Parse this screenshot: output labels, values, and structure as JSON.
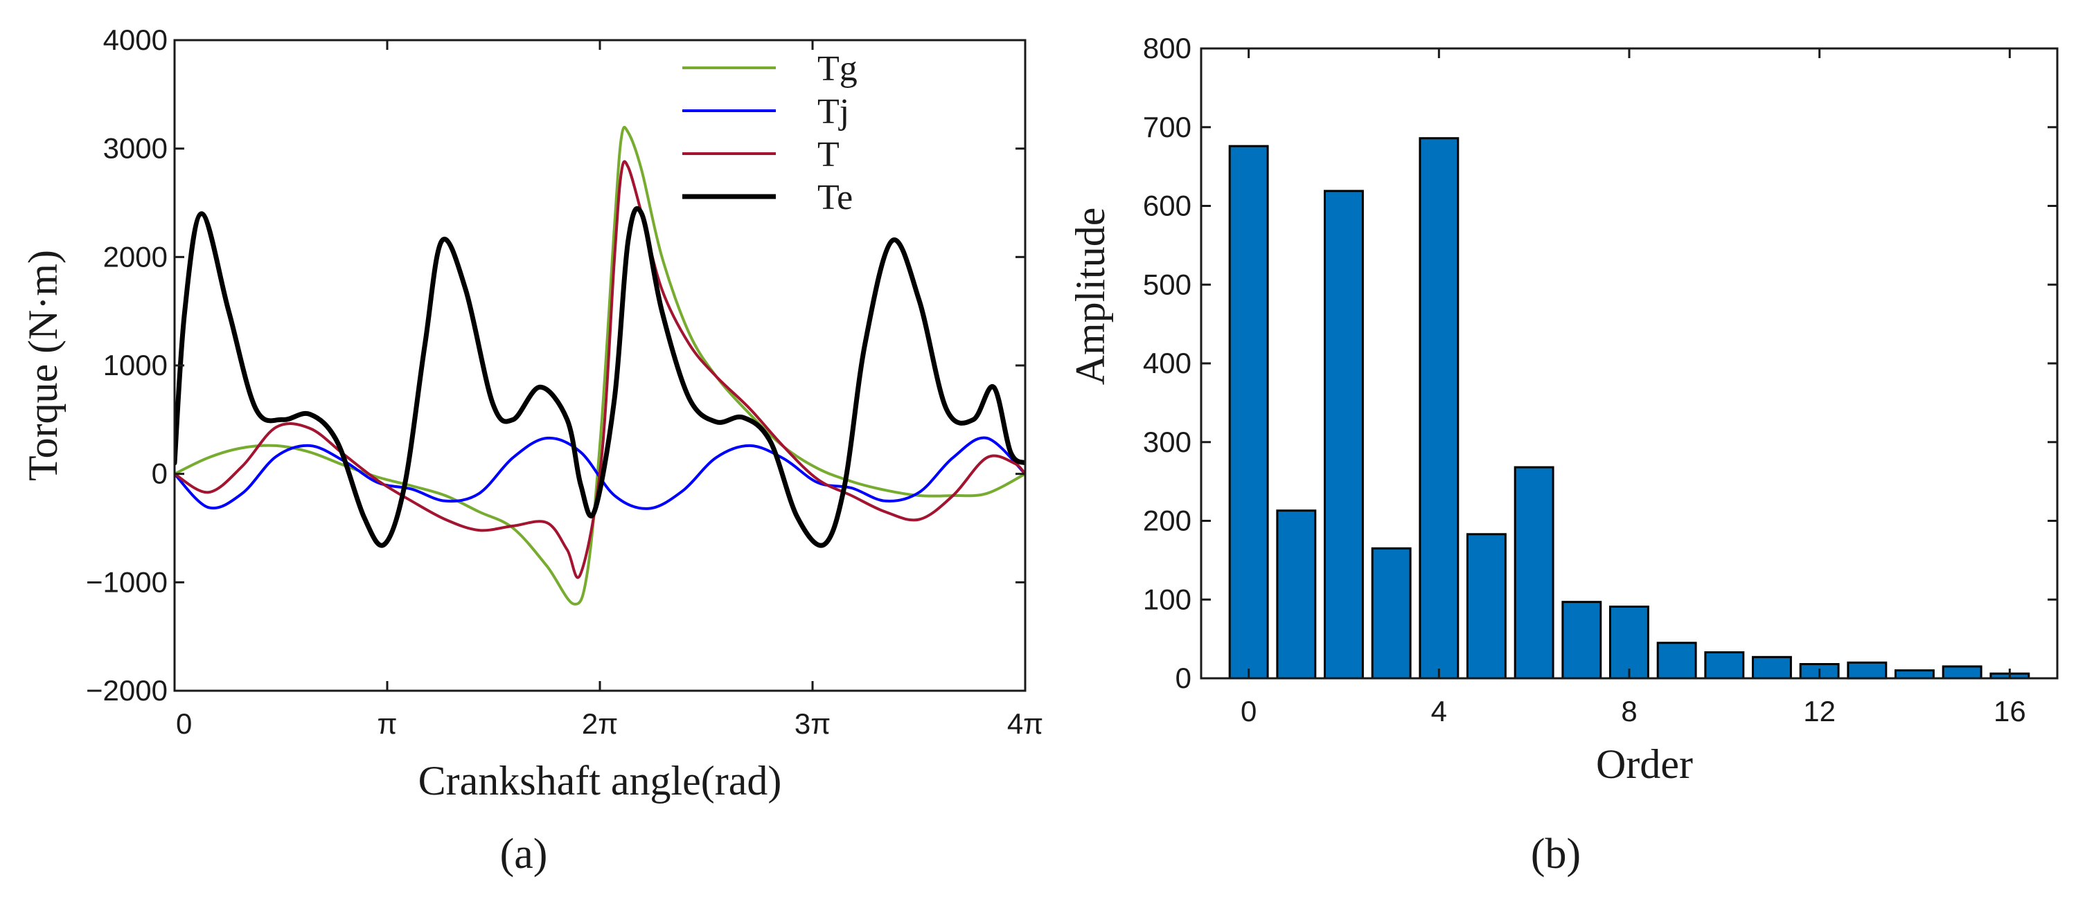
{
  "chart_data": [
    {
      "type": "line",
      "panel_label": "(a)",
      "xlabel": "Crankshaft angle(rad)",
      "ylabel": "Torque (N·m)",
      "xlim": [
        0,
        12.566
      ],
      "ylim": [
        -2000,
        4000
      ],
      "x_ticks": [
        0,
        3.1416,
        6.2832,
        9.4248,
        12.566
      ],
      "x_tick_labels": [
        "0",
        "π",
        "2π",
        "3π",
        "4π"
      ],
      "y_ticks": [
        -2000,
        -1000,
        0,
        1000,
        2000,
        3000,
        4000
      ],
      "y_tick_labels": [
        "−2000",
        "−1000",
        "0",
        "1000",
        "2000",
        "3000",
        "4000"
      ],
      "legend_position": "top-right",
      "series": [
        {
          "name": "Tg",
          "color": "#77ac30",
          "x": [
            0,
            0.5,
            1.0,
            1.5,
            2.0,
            2.5,
            3.0,
            3.5,
            4.0,
            4.5,
            5.0,
            5.5,
            5.9,
            6.1,
            6.3,
            6.5,
            6.6,
            6.7,
            6.9,
            7.2,
            7.6,
            8.0,
            8.5,
            9.0,
            9.5,
            10.0,
            10.5,
            11.0,
            11.5,
            12.0,
            12.566
          ],
          "values": [
            0,
            150,
            240,
            260,
            200,
            80,
            -30,
            -110,
            -200,
            -350,
            -500,
            -850,
            -1200,
            -900,
            400,
            2300,
            3100,
            3150,
            2800,
            2000,
            1300,
            900,
            550,
            250,
            50,
            -70,
            -150,
            -200,
            -200,
            -180,
            0
          ]
        },
        {
          "name": "Tj",
          "color": "#0000ff",
          "x": [
            0,
            0.5,
            1.0,
            1.5,
            2.0,
            2.5,
            3.0,
            3.5,
            4.0,
            4.5,
            5.0,
            5.5,
            6.0,
            6.5,
            7.0,
            7.5,
            8.0,
            8.5,
            9.0,
            9.5,
            10.0,
            10.5,
            11.0,
            11.5,
            12.0,
            12.566
          ],
          "values": [
            0,
            -310,
            -180,
            160,
            260,
            120,
            -80,
            -140,
            -250,
            -180,
            150,
            330,
            200,
            -200,
            -320,
            -160,
            150,
            260,
            140,
            -80,
            -130,
            -250,
            -170,
            150,
            330,
            0
          ]
        },
        {
          "name": "T",
          "color": "#a2142f",
          "x": [
            0,
            0.5,
            1.0,
            1.5,
            2.0,
            2.5,
            3.0,
            3.5,
            4.0,
            4.5,
            5.0,
            5.5,
            5.8,
            6.0,
            6.3,
            6.5,
            6.6,
            6.7,
            6.9,
            7.2,
            7.6,
            8.0,
            8.5,
            9.0,
            9.5,
            10.0,
            10.5,
            11.0,
            11.5,
            12.0,
            12.4,
            12.566
          ],
          "values": [
            0,
            -170,
            70,
            430,
            420,
            180,
            -60,
            -250,
            -420,
            -520,
            -480,
            -450,
            -700,
            -920,
            100,
            2000,
            2780,
            2830,
            2400,
            1700,
            1200,
            900,
            600,
            250,
            -50,
            -200,
            -350,
            -420,
            -200,
            150,
            100,
            0
          ]
        },
        {
          "name": "Te",
          "color": "#000000",
          "x": [
            0,
            0.15,
            0.4,
            0.8,
            1.2,
            1.6,
            2.0,
            2.4,
            2.8,
            3.1,
            3.4,
            3.7,
            3.95,
            4.3,
            4.7,
            5.0,
            5.4,
            5.8,
            6.0,
            6.2,
            6.5,
            6.7,
            6.9,
            7.2,
            7.6,
            8.0,
            8.4,
            8.8,
            9.2,
            9.6,
            9.9,
            10.2,
            10.6,
            11.0,
            11.4,
            11.8,
            12.1,
            12.35,
            12.566
          ],
          "values": [
            100,
            1500,
            2400,
            1500,
            600,
            500,
            550,
            300,
            -400,
            -650,
            -100,
            1200,
            2150,
            1700,
            650,
            500,
            800,
            500,
            -100,
            -350,
            700,
            2150,
            2400,
            1500,
            700,
            480,
            520,
            300,
            -400,
            -650,
            -100,
            1200,
            2150,
            1600,
            600,
            500,
            800,
            200,
            100
          ]
        }
      ]
    },
    {
      "type": "bar",
      "panel_label": "(b)",
      "xlabel": "Order",
      "ylabel": "Amplitude",
      "color": "#0072bd",
      "xlim": [
        -1,
        17
      ],
      "ylim": [
        0,
        800
      ],
      "x_ticks": [
        0,
        4,
        8,
        12,
        16
      ],
      "x_tick_labels": [
        "0",
        "4",
        "8",
        "12",
        "16"
      ],
      "y_ticks": [
        0,
        100,
        200,
        300,
        400,
        500,
        600,
        700,
        800
      ],
      "y_tick_labels": [
        "0",
        "100",
        "200",
        "300",
        "400",
        "500",
        "600",
        "700",
        "800"
      ],
      "categories": [
        0,
        1,
        2,
        3,
        4,
        5,
        6,
        7,
        8,
        9,
        10,
        11,
        12,
        13,
        14,
        15,
        16
      ],
      "values": [
        676,
        213,
        619,
        165,
        686,
        183,
        268,
        97,
        91,
        45,
        33,
        27,
        18,
        20,
        10,
        15,
        6
      ]
    }
  ]
}
